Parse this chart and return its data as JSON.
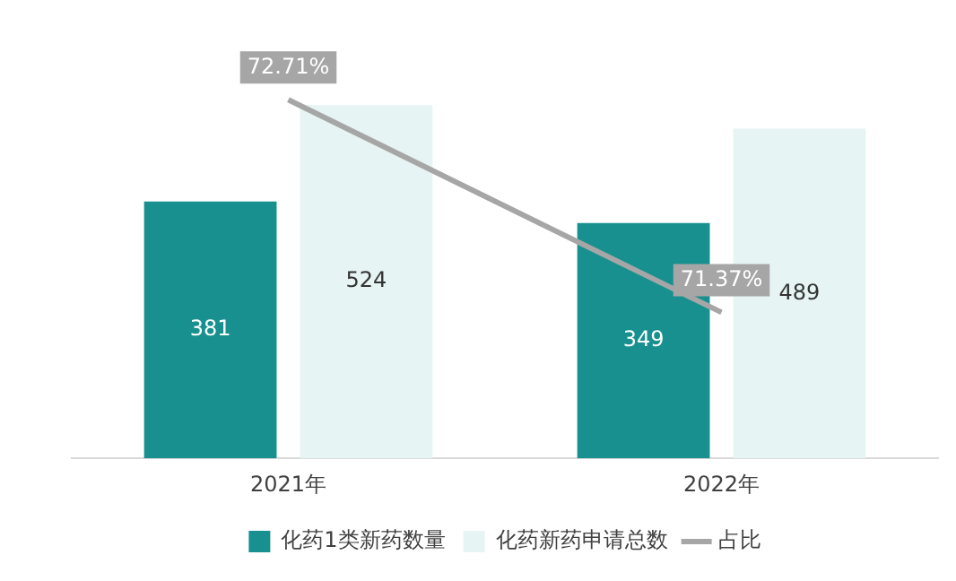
{
  "chart_data": {
    "type": "bar",
    "categories": [
      "2021年",
      "2022年"
    ],
    "series": [
      {
        "name": "化药1类新药数量",
        "color": "#17908f",
        "values": [
          381,
          349
        ]
      },
      {
        "name": "化药新药申请总数",
        "color": "#e6f4f3",
        "values": [
          524,
          489
        ]
      },
      {
        "name": "占比",
        "type": "line",
        "axis": "y2",
        "color": "#a6a6a6",
        "values": [
          72.71,
          71.37
        ],
        "value_labels": [
          "72.71%",
          "71.37%"
        ]
      }
    ],
    "y2lim": [
      70.45,
      73
    ],
    "data_labels": true,
    "grid": false,
    "legend": "bottom",
    "marker": "none",
    "tick_labels": "x"
  }
}
